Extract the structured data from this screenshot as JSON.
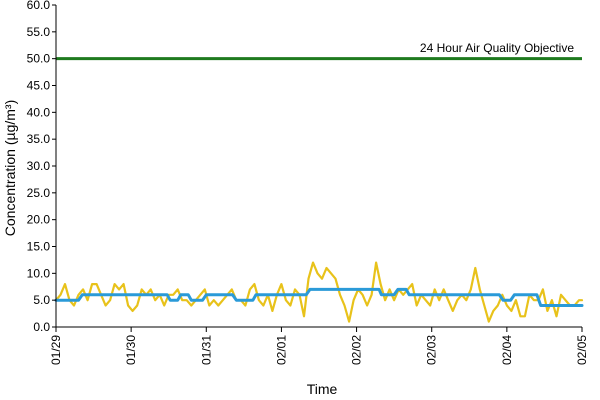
{
  "chart_data": {
    "type": "line",
    "xlabel": "Time",
    "ylabel": "Concentration (µg/m³)",
    "ylim": [
      0,
      60
    ],
    "y_ticks": [
      "0.0",
      "5.0",
      "10.0",
      "15.0",
      "20.0",
      "25.0",
      "30.0",
      "35.0",
      "40.0",
      "45.0",
      "50.0",
      "55.0",
      "60.0"
    ],
    "x_ticks": [
      "01/29",
      "01/30",
      "01/31",
      "02/01",
      "02/02",
      "02/03",
      "02/04",
      "02/05"
    ],
    "x_tick_label_rotation": "vertical",
    "grid": false,
    "legend": "none",
    "colors": {
      "objective": "#1e7a1e",
      "hourly": "#e8c21a",
      "rolling": "#2a9ad8",
      "axis": "#000000"
    },
    "objective": {
      "value": 50.0,
      "label": "24 Hour Air Quality Objective"
    },
    "series": [
      {
        "key": "hourly",
        "x": [
          0,
          0.06,
          0.12,
          0.18,
          0.24,
          0.3,
          0.36,
          0.42,
          0.48,
          0.54,
          0.6,
          0.66,
          0.72,
          0.78,
          0.84,
          0.9,
          0.96,
          1.02,
          1.08,
          1.14,
          1.2,
          1.26,
          1.32,
          1.38,
          1.44,
          1.5,
          1.56,
          1.62,
          1.68,
          1.74,
          1.8,
          1.86,
          1.92,
          1.98,
          2.04,
          2.1,
          2.16,
          2.22,
          2.28,
          2.34,
          2.4,
          2.46,
          2.52,
          2.58,
          2.64,
          2.7,
          2.76,
          2.82,
          2.88,
          2.94,
          3.0,
          3.06,
          3.12,
          3.18,
          3.24,
          3.3,
          3.36,
          3.42,
          3.48,
          3.54,
          3.6,
          3.66,
          3.72,
          3.78,
          3.84,
          3.9,
          3.96,
          4.02,
          4.08,
          4.14,
          4.2,
          4.26,
          4.32,
          4.38,
          4.44,
          4.5,
          4.56,
          4.62,
          4.68,
          4.74,
          4.8,
          4.86,
          4.92,
          4.98,
          5.04,
          5.1,
          5.16,
          5.22,
          5.28,
          5.34,
          5.4,
          5.46,
          5.52,
          5.58,
          5.64,
          5.7,
          5.76,
          5.82,
          5.88,
          5.94,
          6.0,
          6.06,
          6.12,
          6.18,
          6.24,
          6.3,
          6.36,
          6.42,
          6.48,
          6.54,
          6.6,
          6.66,
          6.72,
          6.78,
          6.84,
          6.9,
          6.96,
          7.0
        ],
        "values": [
          5,
          6,
          8,
          5,
          4,
          6,
          7,
          5,
          8,
          8,
          6,
          4,
          5,
          8,
          7,
          8,
          4,
          3,
          4,
          7,
          6,
          7,
          5,
          6,
          4,
          6,
          6,
          7,
          5,
          5,
          4,
          5,
          6,
          7,
          4,
          5,
          4,
          5,
          6,
          7,
          5,
          5,
          4,
          7,
          8,
          5,
          4,
          6,
          3,
          6,
          8,
          5,
          4,
          7,
          6,
          2,
          9,
          12,
          10,
          9,
          11,
          10,
          9,
          6,
          4,
          1,
          5,
          7,
          6,
          4,
          6,
          12,
          8,
          5,
          7,
          5,
          7,
          6,
          7,
          8,
          4,
          6,
          5,
          4,
          7,
          5,
          7,
          5,
          3,
          5,
          6,
          5,
          7,
          11,
          7,
          4,
          1,
          3,
          4,
          6,
          4,
          3,
          5,
          2,
          2,
          6,
          5,
          5,
          7,
          3,
          5,
          2,
          6,
          5,
          4,
          4,
          5,
          5
        ]
      },
      {
        "key": "rolling",
        "x": [
          0,
          0.3,
          0.35,
          1.48,
          1.52,
          1.62,
          1.66,
          1.76,
          1.8,
          1.95,
          2.0,
          2.35,
          2.4,
          2.62,
          2.66,
          3.33,
          3.38,
          4.3,
          4.33,
          4.5,
          4.55,
          4.66,
          4.7,
          5.9,
          5.95,
          6.05,
          6.1,
          6.4,
          6.45,
          7.0
        ],
        "values": [
          5,
          5,
          6,
          6,
          5,
          5,
          6,
          6,
          5,
          5,
          6,
          6,
          5,
          5,
          6,
          6,
          7,
          7,
          6,
          6,
          7,
          7,
          6,
          6,
          5,
          5,
          6,
          6,
          4,
          4
        ]
      }
    ]
  }
}
